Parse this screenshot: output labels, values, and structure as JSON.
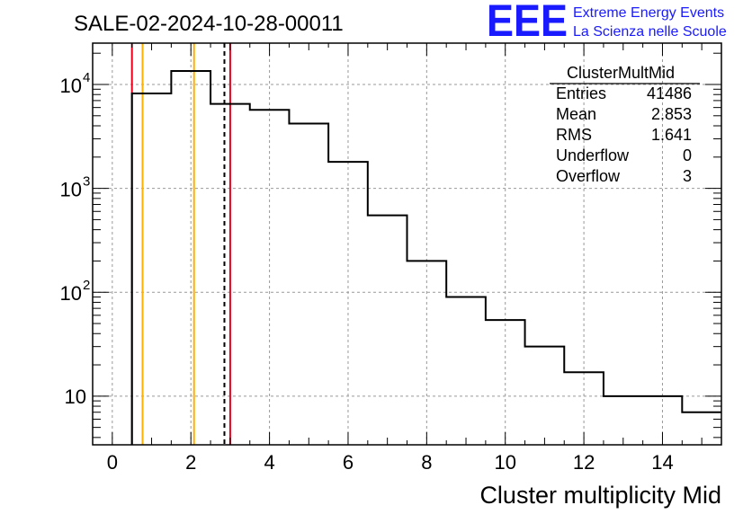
{
  "chart_data": {
    "type": "histogram",
    "title": "SALE-02-2024-10-28-00011",
    "xlabel": "Cluster multiplicity Mid",
    "ylabel": "",
    "xlim": [
      -0.5,
      15.5
    ],
    "ylim": [
      3.4,
      25000
    ],
    "yscale": "log",
    "grid": true,
    "x_ticks": [
      0,
      2,
      4,
      6,
      8,
      10,
      12,
      14
    ],
    "y_ticks": [
      {
        "value": 10,
        "base": "10",
        "exp": ""
      },
      {
        "value": 100,
        "base": "10",
        "exp": "2"
      },
      {
        "value": 1000,
        "base": "10",
        "exp": "3"
      },
      {
        "value": 10000,
        "base": "10",
        "exp": "4"
      }
    ],
    "bin_edges": [
      0.5,
      1.5,
      2.5,
      3.5,
      4.5,
      5.5,
      6.5,
      7.5,
      8.5,
      9.5,
      10.5,
      11.5,
      12.5,
      13.5,
      14.5,
      15.5
    ],
    "counts": [
      8200,
      13500,
      6500,
      5700,
      4200,
      1800,
      550,
      200,
      90,
      54,
      30,
      17,
      10,
      10,
      7
    ],
    "vertical_lines": [
      {
        "x": 0.5,
        "color": "#e8001c",
        "style": "solid"
      },
      {
        "x": 0.77,
        "color": "#ffb000",
        "style": "solid"
      },
      {
        "x": 2.08,
        "color": "#ffb000",
        "style": "solid"
      },
      {
        "x": 2.853,
        "color": "#000000",
        "style": "dashed"
      },
      {
        "x": 3.0,
        "color": "#e8001c",
        "style": "solid"
      }
    ],
    "stats_box": {
      "name": "ClusterMultMid",
      "rows": [
        {
          "label": "Entries",
          "value": "41486"
        },
        {
          "label": "Mean",
          "value": "2.853"
        },
        {
          "label": "RMS",
          "value": "1.641"
        },
        {
          "label": "Underflow",
          "value": "0"
        },
        {
          "label": "Overflow",
          "value": "3"
        }
      ]
    }
  },
  "logo": {
    "mark": "EEE",
    "line1": "Extreme Energy Events",
    "line2": "La Scienza nelle Scuole",
    "color": "#1a1aff"
  }
}
